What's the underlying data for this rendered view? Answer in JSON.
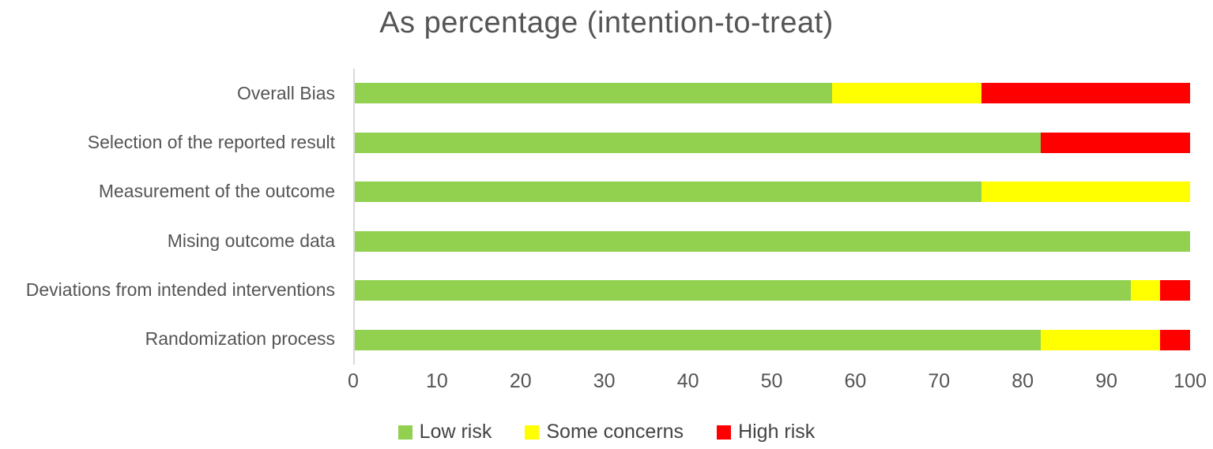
{
  "chart_data": {
    "type": "bar",
    "orientation": "horizontal",
    "stacked": true,
    "title": "As percentage (intention-to-treat)",
    "categories": [
      "Overall Bias",
      "Selection of the reported result",
      "Measurement of the outcome",
      "Mising outcome data",
      "Deviations from intended interventions",
      "Randomization process"
    ],
    "series": [
      {
        "name": "Low risk",
        "color": "#92D050",
        "values": [
          57.1,
          82.1,
          75.0,
          100.0,
          92.9,
          82.1
        ]
      },
      {
        "name": "Some concerns",
        "color": "#FFFF00",
        "values": [
          17.9,
          0.0,
          25.0,
          0.0,
          3.5,
          14.3
        ]
      },
      {
        "name": "High risk",
        "color": "#FF0000",
        "values": [
          25.0,
          17.9,
          0.0,
          0.0,
          3.6,
          3.6
        ]
      }
    ],
    "xlabel": "",
    "ylabel": "",
    "xlim": [
      0,
      100
    ],
    "x_ticks": [
      0,
      10,
      20,
      30,
      40,
      50,
      60,
      70,
      80,
      90,
      100
    ],
    "grid": false,
    "legend_position": "bottom"
  },
  "colors": {
    "background": "#FFFFFF",
    "title_text": "#555555",
    "axis_text": "#555555",
    "axis_line": "#D9D9D9"
  }
}
